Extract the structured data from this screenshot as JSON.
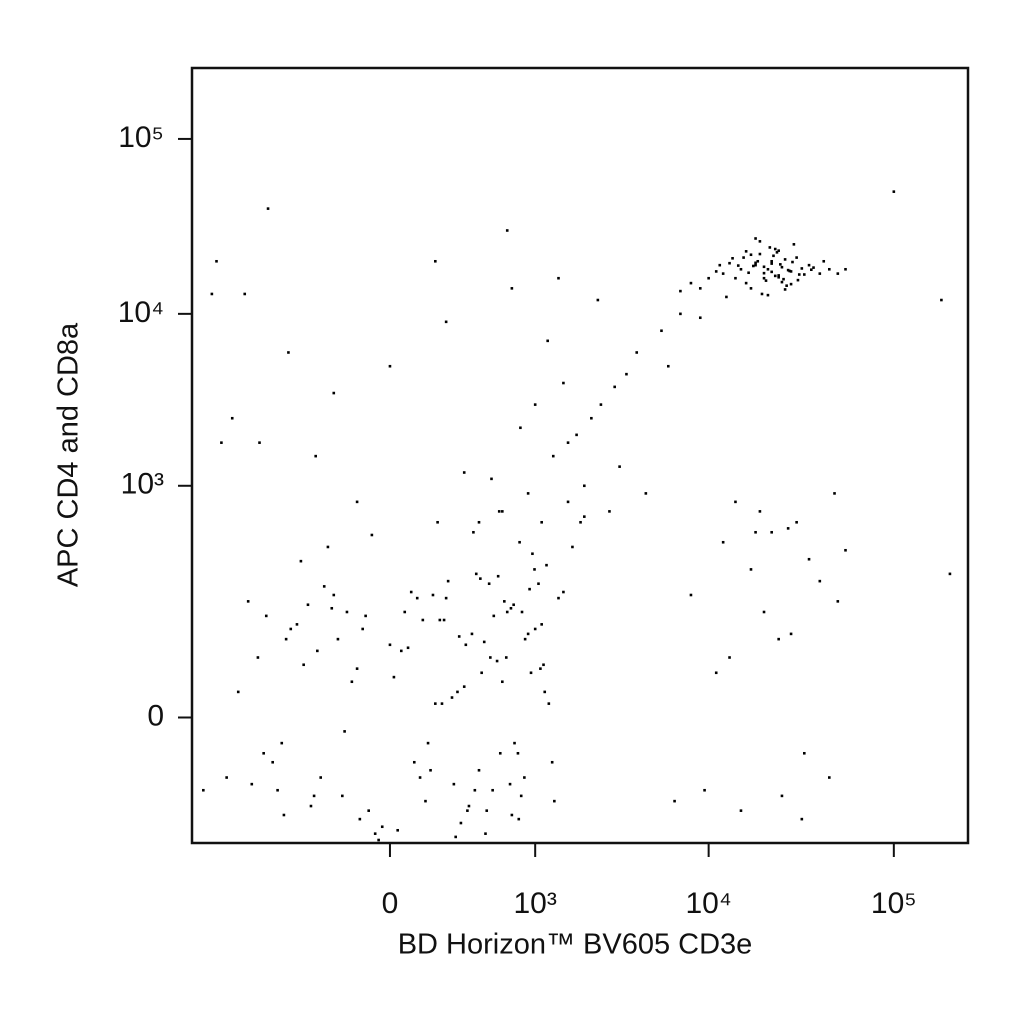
{
  "chart_data": {
    "type": "scatter",
    "xlabel": "BD Horizon™ BV605 CD3e",
    "ylabel": "APC CD4 and CD8a",
    "xscale": "biexponential",
    "yscale": "biexponential",
    "xlim": [
      -2100,
      250000
    ],
    "ylim": [
      -210,
      254000
    ],
    "xticks": [
      0,
      {
        "value": 1000,
        "label": "10³"
      },
      {
        "value": 10000,
        "label": "10⁴"
      },
      {
        "value": 100000,
        "label": "10⁵"
      }
    ],
    "yticks": [
      0,
      {
        "value": 1000,
        "label": "10³"
      },
      {
        "value": 10000,
        "label": "10⁴"
      },
      {
        "value": 100000,
        "label": "10⁵"
      }
    ],
    "color": "#000000",
    "x": [
      -820,
      -650,
      -430,
      -310,
      -200,
      -120,
      -60,
      0,
      40,
      90,
      150,
      210,
      280,
      350,
      420,
      510,
      620,
      730,
      860,
      990,
      1150,
      1320,
      -900,
      -720,
      -540,
      -380,
      -250,
      -150,
      -80,
      -20,
      30,
      80,
      130,
      190,
      260,
      330,
      410,
      490,
      580,
      690,
      810,
      940,
      1100,
      1280,
      1500,
      -1100,
      -600,
      -350,
      -180,
      -90,
      10,
      60,
      120,
      170,
      240,
      310,
      380,
      460,
      550,
      650,
      770,
      900,
      1050,
      1220,
      -480,
      -270,
      -140,
      -40,
      50,
      110,
      200,
      300,
      400,
      520,
      640,
      780,
      920,
      1080,
      -750,
      -520,
      -330,
      -210,
      -100,
      20,
      100,
      180,
      270,
      370,
      480,
      600,
      720,
      850,
      1000,
      1180,
      1400,
      1700,
      -950,
      -560,
      -290,
      -160,
      -70,
      70,
      140,
      230,
      320,
      440,
      560,
      680,
      820,
      960,
      1130,
      -400,
      -230,
      -50,
      160,
      360,
      570,
      790,
      -1300,
      2000,
      1600,
      250,
      -30,
      450,
      700,
      600,
      900,
      1300,
      1800,
      2500,
      3500,
      -200,
      0,
      300,
      1100,
      2200,
      4000,
      5500,
      7000,
      800,
      1500,
      2800,
      -500,
      -300,
      200,
      700,
      1200,
      2000,
      3000,
      4500,
      6000,
      400,
      1000,
      1600,
      2400,
      -100,
      500,
      -800,
      -1200,
      150,
      3200,
      1900,
      9000,
      650,
      1400,
      12000,
      15000,
      18000,
      20000,
      22000,
      25000,
      28000,
      30000,
      35000,
      40000,
      16000,
      19000,
      21000,
      23000,
      26000,
      13000,
      17000,
      24000,
      27000,
      32000,
      14000,
      18500,
      20500,
      22500,
      24500,
      9000,
      10000,
      11000,
      45000,
      50000,
      21500,
      19500,
      23500,
      17500,
      25500,
      16500,
      28500,
      31000,
      15500,
      26500,
      20000,
      22000,
      24000,
      18000,
      13500,
      37000,
      29000,
      12500,
      33000,
      11500,
      8000,
      7000,
      42000,
      55000,
      19000,
      21000,
      23000,
      25000,
      17000,
      27500,
      14500,
      30500,
      16000,
      20000,
      22000,
      24000,
      26000,
      18000,
      28000,
      36000,
      6500,
      8000,
      9500,
      12000,
      13000,
      15000,
      17000,
      20000,
      22000,
      25000,
      28000,
      30000,
      32000,
      35000,
      40000,
      45000,
      50000,
      55000,
      11000,
      14000,
      18000,
      24000,
      33000,
      19000,
      27000,
      -1800,
      -1500,
      -1400,
      180000,
      200000,
      100000,
      -1000,
      -700,
      48000,
      -1600
    ],
    "values": [
      60,
      -40,
      120,
      -90,
      200,
      30,
      -120,
      80,
      150,
      -60,
      10,
      250,
      -150,
      100,
      40,
      -80,
      180,
      -20,
      90,
      300,
      20,
      -100,
      -70,
      140,
      -130,
      50,
      230,
      -10,
      110,
      -160,
      70,
      190,
      -50,
      130,
      20,
      -110,
      260,
      60,
      -30,
      160,
      -90,
      40,
      120,
      -40,
      210,
      20,
      -80,
      170,
      90,
      -140,
      35,
      210,
      -20,
      130,
      -70,
      80,
      280,
      -120,
      55,
      150,
      -30,
      100,
      240,
      10,
      110,
      -60,
      150,
      -180,
      75,
      -100,
      190,
      25,
      -50,
      140,
      60,
      -140,
      220,
      45,
      -30,
      90,
      -110,
      160,
      45,
      -170,
      130,
      10,
      95,
      -80,
      240,
      30,
      170,
      -60,
      110,
      320,
      190,
      420,
      180,
      -20,
      70,
      -90,
      140,
      -40,
      200,
      15,
      -120,
      85,
      270,
      -70,
      150,
      380,
      50,
      340,
      420,
      500,
      600,
      520,
      700,
      450,
      -60,
      650,
      800,
      -190,
      -200,
      -180,
      -130,
      700,
      900,
      1500,
      2000,
      3000,
      4500,
      3500,
      5000,
      1200,
      600,
      2500,
      6000,
      8000,
      10000,
      2200,
      4000,
      700,
      6000,
      1500,
      9000,
      14000,
      7000,
      1000,
      3800,
      900,
      5000,
      600,
      3000,
      1800,
      12000,
      800,
      1100,
      1800,
      2500,
      20000,
      1300,
      600,
      9500,
      30000,
      16000,
      17000,
      18000,
      19000,
      16000,
      20000,
      18500,
      17500,
      21000,
      19000,
      17000,
      15000,
      22000,
      18000,
      16500,
      20500,
      19500,
      14000,
      23000,
      17800,
      18200,
      16000,
      20000,
      15500,
      21500,
      19200,
      14000,
      16000,
      17500,
      18000,
      17000,
      24000,
      13000,
      22500,
      18800,
      15800,
      17200,
      19800,
      16800,
      21000,
      14500,
      18600,
      17400,
      16200,
      19600,
      20800,
      18400,
      25000,
      12500,
      16800,
      19000,
      15000,
      13500,
      20000,
      18000,
      26000,
      12800,
      23500,
      15200,
      21800,
      17600,
      18900,
      15600,
      22800,
      17100,
      19400,
      16600,
      13800,
      27000,
      14800,
      17900,
      -100,
      200,
      -80,
      450,
      60,
      -120,
      300,
      150,
      520,
      -90,
      100,
      600,
      -140,
      350,
      250,
      -60,
      180,
      400,
      40,
      800,
      520,
      90,
      -30,
      700,
      550,
      -80,
      20000,
      1800,
      12000,
      280,
      50000,
      13000,
      40000,
      900,
      13000
    ]
  }
}
